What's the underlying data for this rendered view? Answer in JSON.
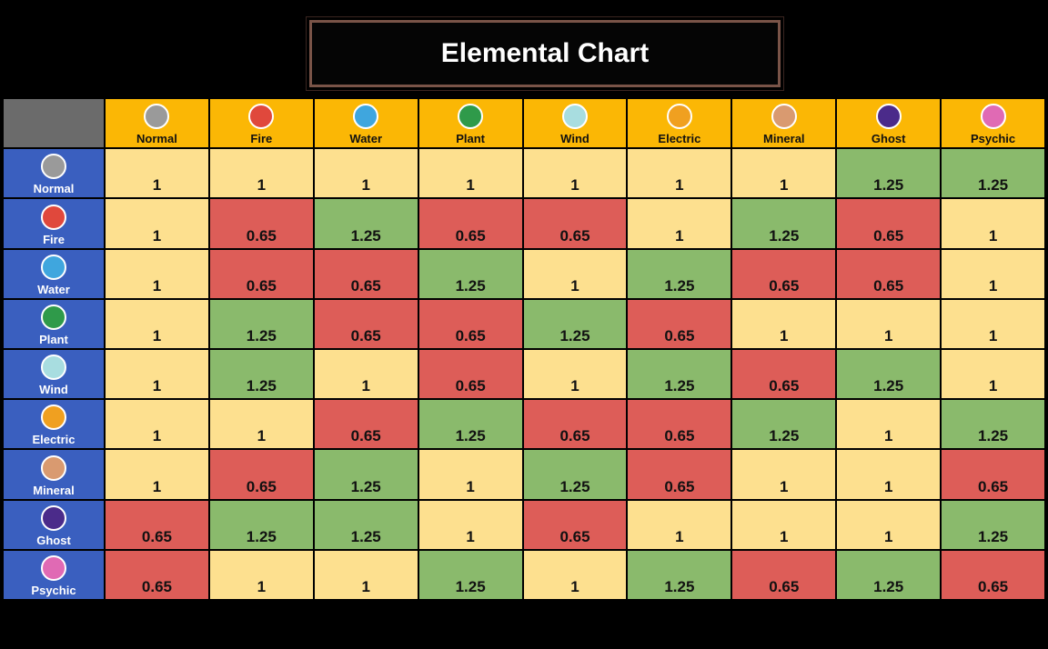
{
  "title": "Elemental Chart",
  "table": {
    "columns": [
      "Normal",
      "Fire",
      "Water",
      "Plant",
      "Wind",
      "Electric",
      "Mineral",
      "Ghost",
      "Psychic"
    ],
    "rows": [
      {
        "label": "Normal",
        "values": [
          1,
          1,
          1,
          1,
          1,
          1,
          1,
          1.25,
          1.25
        ]
      },
      {
        "label": "Fire",
        "values": [
          1,
          0.65,
          1.25,
          0.65,
          0.65,
          1,
          1.25,
          0.65,
          1
        ]
      },
      {
        "label": "Water",
        "values": [
          1,
          0.65,
          0.65,
          1.25,
          1,
          1.25,
          0.65,
          0.65,
          1
        ]
      },
      {
        "label": "Plant",
        "values": [
          1,
          1.25,
          0.65,
          0.65,
          1.25,
          0.65,
          1,
          1,
          1
        ]
      },
      {
        "label": "Wind",
        "values": [
          1,
          1.25,
          1,
          0.65,
          1,
          1.25,
          0.65,
          1.25,
          1
        ]
      },
      {
        "label": "Electric",
        "values": [
          1,
          1,
          0.65,
          1.25,
          0.65,
          0.65,
          1.25,
          1,
          1.25
        ]
      },
      {
        "label": "Mineral",
        "values": [
          1,
          0.65,
          1.25,
          1,
          1.25,
          0.65,
          1,
          1,
          0.65
        ]
      },
      {
        "label": "Ghost",
        "values": [
          0.65,
          1.25,
          1.25,
          1,
          0.65,
          1,
          1,
          1,
          1.25
        ]
      },
      {
        "label": "Psychic",
        "values": [
          0.65,
          1,
          1,
          1.25,
          1,
          1.25,
          0.65,
          1.25,
          0.65
        ]
      }
    ]
  }
}
